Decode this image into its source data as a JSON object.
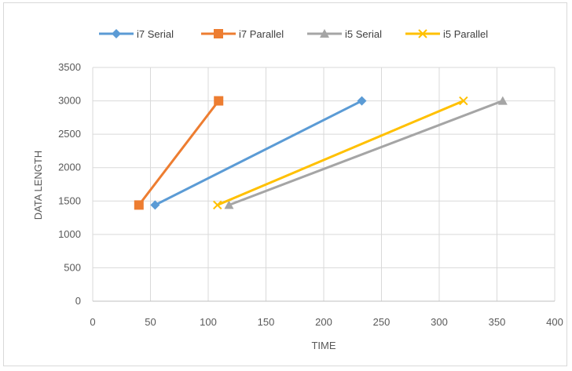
{
  "chart_data": {
    "type": "line",
    "title": "",
    "xlabel": "TIME",
    "ylabel": "DATA LENGTH",
    "xlim": [
      0,
      400
    ],
    "ylim": [
      0,
      3500
    ],
    "xticks": [
      0,
      50,
      100,
      150,
      200,
      250,
      300,
      350,
      400
    ],
    "yticks": [
      0,
      500,
      1000,
      1500,
      2000,
      2500,
      3000,
      3500
    ],
    "grid": true,
    "legend_position": "top",
    "series": [
      {
        "name": "i7 Serial",
        "color": "#5b9bd5",
        "marker": "diamond",
        "points": [
          [
            54,
            1440
          ],
          [
            233,
            3000
          ]
        ]
      },
      {
        "name": "i7 Parallel",
        "color": "#ed7d31",
        "marker": "square",
        "points": [
          [
            40,
            1440
          ],
          [
            109,
            3000
          ]
        ]
      },
      {
        "name": "i5 Serial",
        "color": "#a5a5a5",
        "marker": "triangle",
        "points": [
          [
            118,
            1440
          ],
          [
            355,
            3000
          ]
        ]
      },
      {
        "name": "i5 Parallel",
        "color": "#ffc000",
        "marker": "x",
        "points": [
          [
            108,
            1440
          ],
          [
            321,
            3000
          ]
        ]
      }
    ]
  }
}
